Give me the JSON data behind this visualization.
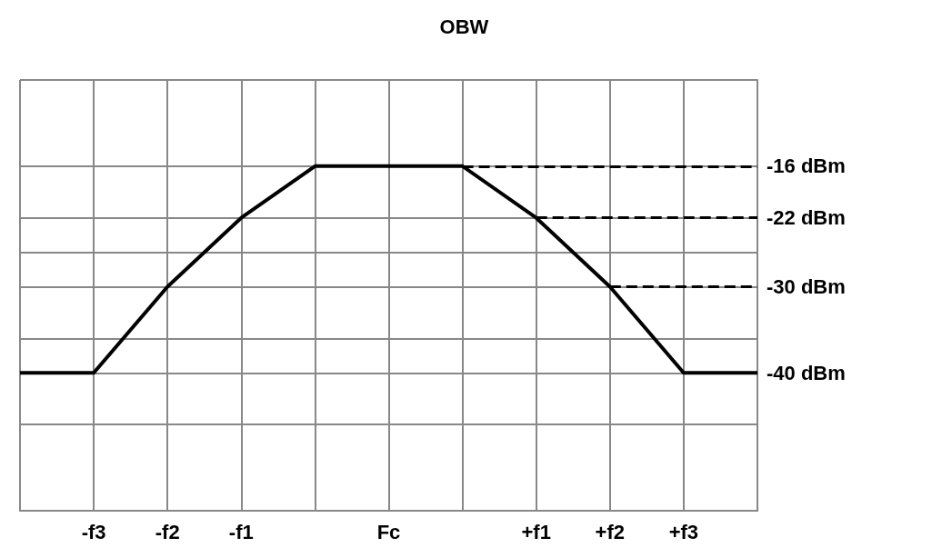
{
  "chart_data": {
    "type": "line",
    "categories": [
      null,
      "-f3",
      "-f2",
      "-f1",
      null,
      "Fc",
      null,
      "+f1",
      "+f2",
      "+f3",
      null
    ],
    "series": [
      {
        "color": "#000000",
        "values": [
          -40,
          -40,
          -30,
          -22,
          -16,
          -16,
          -16,
          -22,
          -30,
          -40,
          -40
        ]
      }
    ],
    "ylim": [
      -56,
      -6
    ],
    "yticks": [
      {
        "value": -56,
        "label": null
      },
      {
        "value": -46,
        "label": null
      },
      {
        "value": -40,
        "label": "-40 dBm"
      },
      {
        "value": -36,
        "label": null
      },
      {
        "value": -30,
        "label": "-30 dBm"
      },
      {
        "value": -26,
        "label": null
      },
      {
        "value": -22,
        "label": "-22 dBm"
      },
      {
        "value": -16,
        "label": "-16 dBm"
      },
      {
        "value": -6,
        "label": null
      }
    ],
    "ref_lines": [
      {
        "axis": "y",
        "value": -16,
        "line_style": "dashed"
      },
      {
        "axis": "y",
        "value": -22,
        "line_style": "dashed"
      },
      {
        "axis": "y",
        "value": -30,
        "line_style": "dashed"
      }
    ],
    "annotations": [
      "OBW"
    ],
    "grid": true,
    "marker": "none",
    "line_style": "solid"
  }
}
